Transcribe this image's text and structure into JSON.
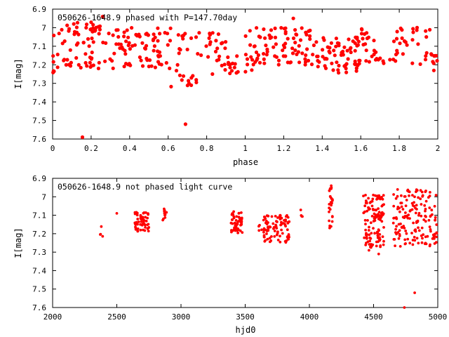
{
  "chart_data": [
    {
      "type": "scatter",
      "title": "050626-1648.9 phased with P=147.70day",
      "xlabel": "phase",
      "ylabel": "I[mag]",
      "xlim": [
        0,
        2
      ],
      "ylim": [
        6.9,
        7.6
      ],
      "y_inverted": true,
      "x_ticks": [
        "0",
        "0.2",
        "0.4",
        "0.6",
        "0.8",
        "1",
        "1.2",
        "1.4",
        "1.6",
        "1.8",
        "2"
      ],
      "y_ticks": [
        "6.9",
        "7",
        "7.1",
        "7.2",
        "7.3",
        "7.4",
        "7.5",
        "7.6"
      ],
      "marker_color": "#ff0000",
      "grid": false,
      "series": [
        {
          "clusters": [
            {
              "x_range": [
                0.0,
                0.3
              ],
              "y_range": [
                6.97,
                7.1
              ],
              "n": 40
            },
            {
              "x_range": [
                0.0,
                0.3
              ],
              "y_range": [
                7.12,
                7.22
              ],
              "n": 30
            },
            {
              "x_range": [
                0.0,
                0.02
              ],
              "y_range": [
                7.22,
                7.26
              ],
              "n": 3
            },
            {
              "x_range": [
                0.3,
                0.62
              ],
              "y_range": [
                7.0,
                7.1
              ],
              "n": 40
            },
            {
              "x_range": [
                0.3,
                0.62
              ],
              "y_range": [
                7.1,
                7.22
              ],
              "n": 35
            },
            {
              "x_range": [
                0.6,
                0.75
              ],
              "y_range": [
                7.2,
                7.32
              ],
              "n": 14
            },
            {
              "x_range": [
                0.65,
                0.9
              ],
              "y_range": [
                7.02,
                7.16
              ],
              "n": 30
            },
            {
              "x_range": [
                0.85,
                1.05
              ],
              "y_range": [
                7.15,
                7.25
              ],
              "n": 25
            },
            {
              "x_range": [
                1.0,
                1.35
              ],
              "y_range": [
                7.0,
                7.12
              ],
              "n": 45
            },
            {
              "x_range": [
                1.0,
                1.35
              ],
              "y_range": [
                7.12,
                7.2
              ],
              "n": 35
            },
            {
              "x_range": [
                1.35,
                1.6
              ],
              "y_range": [
                7.05,
                7.25
              ],
              "n": 70
            },
            {
              "x_range": [
                1.6,
                2.0
              ],
              "y_range": [
                7.0,
                7.1
              ],
              "n": 30
            },
            {
              "x_range": [
                1.6,
                2.0
              ],
              "y_range": [
                7.12,
                7.2
              ],
              "n": 30
            },
            {
              "x_range": [
                1.95,
                2.0
              ],
              "y_range": [
                7.15,
                7.25
              ],
              "n": 4
            }
          ],
          "points": [
            [
              0.155,
              7.59
            ],
            [
              0.69,
              7.52
            ],
            [
              1.25,
              6.95
            ],
            [
              0.26,
              6.94
            ],
            [
              0.11,
              6.98
            ],
            [
              0.83,
              7.25
            ],
            [
              0.72,
              7.31
            ]
          ]
        }
      ]
    },
    {
      "type": "scatter",
      "title": "050626-1648.9 not phased light curve",
      "xlabel": "hjd0",
      "ylabel": "I[mag]",
      "xlim": [
        2000,
        5000
      ],
      "ylim": [
        6.9,
        7.6
      ],
      "y_inverted": true,
      "x_ticks": [
        "2000",
        "2500",
        "3000",
        "3500",
        "4000",
        "4500",
        "5000"
      ],
      "y_ticks": [
        "6.9",
        "7",
        "7.1",
        "7.2",
        "7.3",
        "7.4",
        "7.5",
        "7.6"
      ],
      "marker_color": "#ff0000",
      "grid": false,
      "series": [
        {
          "clusters": [
            {
              "x_range": [
                2370,
                2400
              ],
              "y_range": [
                7.15,
                7.22
              ],
              "n": 4
            },
            {
              "x_range": [
                2640,
                2750
              ],
              "y_range": [
                7.08,
                7.19
              ],
              "n": 55
            },
            {
              "x_range": [
                2850,
                2890
              ],
              "y_range": [
                7.06,
                7.13
              ],
              "n": 10
            },
            {
              "x_range": [
                3390,
                3480
              ],
              "y_range": [
                7.08,
                7.2
              ],
              "n": 50
            },
            {
              "x_range": [
                3590,
                3630
              ],
              "y_range": [
                7.15,
                7.2
              ],
              "n": 4
            },
            {
              "x_range": [
                3640,
                3850
              ],
              "y_range": [
                7.1,
                7.25
              ],
              "n": 90
            },
            {
              "x_range": [
                3930,
                3950
              ],
              "y_range": [
                7.07,
                7.11
              ],
              "n": 4
            },
            {
              "x_range": [
                4150,
                4180
              ],
              "y_range": [
                6.93,
                7.17
              ],
              "n": 25
            },
            {
              "x_range": [
                4420,
                4580
              ],
              "y_range": [
                6.99,
                7.3
              ],
              "n": 120
            },
            {
              "x_range": [
                4650,
                5000
              ],
              "y_range": [
                6.96,
                7.27
              ],
              "n": 160
            }
          ],
          "points": [
            [
              2500,
              7.09
            ],
            [
              4820,
              7.52
            ],
            [
              4740,
              7.6
            ],
            [
              4170,
              6.94
            ],
            [
              4540,
              7.31
            ]
          ]
        }
      ]
    }
  ]
}
